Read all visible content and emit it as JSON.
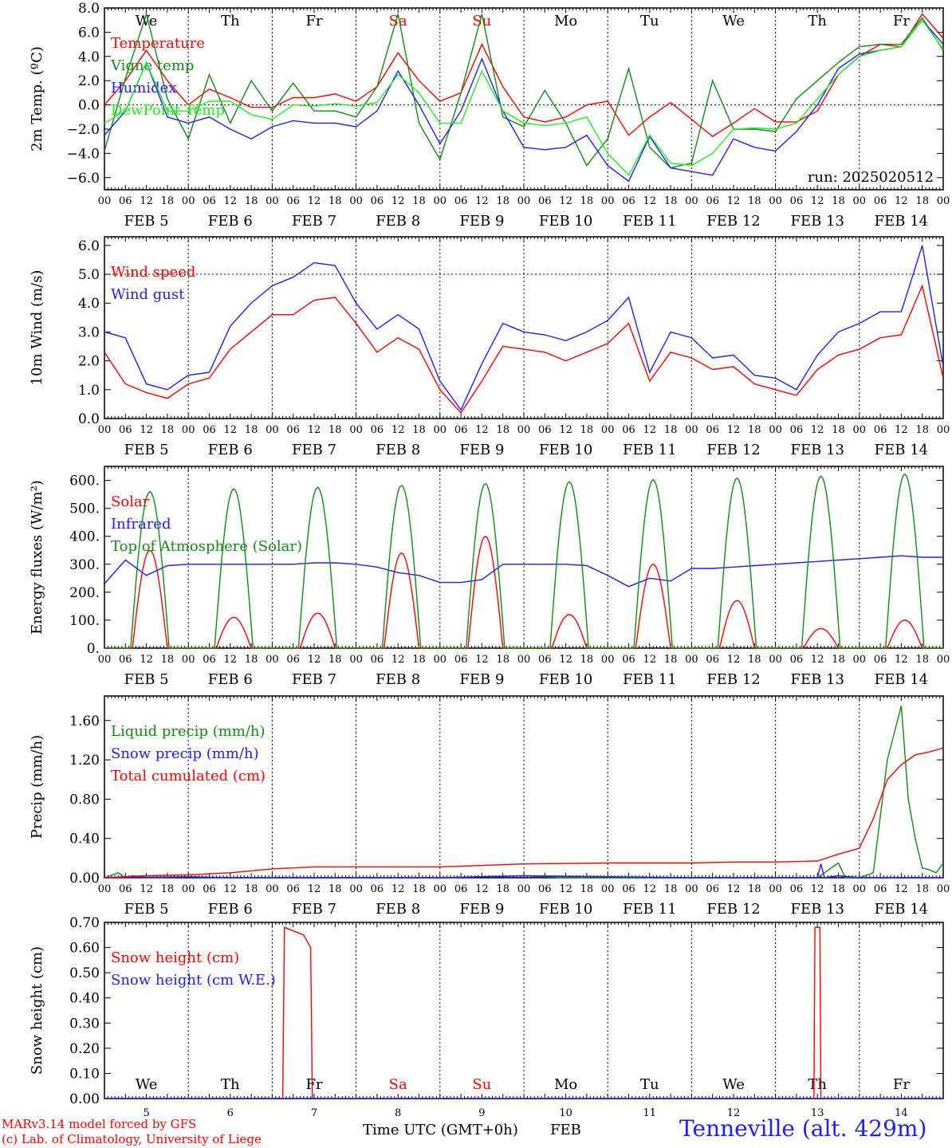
{
  "colors": {
    "red": "#ff0000",
    "dark_green": "#138a13",
    "blue": "#1e1eff",
    "light_green": "#22ee22",
    "weekend_day": "#ff0000",
    "axis": "#000000"
  },
  "footer": {
    "credit_line1": "MARv3.14 model forced by GFS",
    "credit_line2": "(c) Lab. of Climatology, University of Liege",
    "x_title": "Time UTC (GMT+0h)",
    "x_month": "FEB",
    "station": "Tenneville (alt. 429m)"
  },
  "chart_data": [
    {
      "type": "line",
      "panel": "temperature",
      "ylabel": "2m Temp. (ºC)",
      "ylim": [
        -7,
        8
      ],
      "yticks": [
        "8.0",
        "6.0",
        "4.0",
        "2.0",
        "0.0",
        "−2.0",
        "−4.0",
        "−6.0"
      ],
      "reference_line": 0.0,
      "annotation": "run: 2025020512",
      "day_names": [
        {
          "label": "We",
          "weekend": false
        },
        {
          "label": "Th",
          "weekend": false
        },
        {
          "label": "Fr",
          "weekend": false
        },
        {
          "label": "Sa",
          "weekend": true
        },
        {
          "label": "Su",
          "weekend": true
        },
        {
          "label": "Mo",
          "weekend": false
        },
        {
          "label": "Tu",
          "weekend": false
        },
        {
          "label": "We",
          "weekend": false
        },
        {
          "label": "Th",
          "weekend": false
        },
        {
          "label": "Fr",
          "weekend": false
        }
      ],
      "x_hours_points": [
        0,
        6,
        12,
        18,
        24,
        30,
        36,
        42,
        48,
        54,
        60,
        66,
        72,
        78,
        84,
        90,
        96,
        102,
        108,
        114,
        120,
        126,
        132,
        138,
        144,
        150,
        156,
        162,
        168,
        174,
        180,
        186,
        192,
        198,
        204,
        210,
        216,
        222,
        228,
        234,
        240
      ],
      "series": [
        {
          "name": "Temperature",
          "color": "red",
          "values": [
            0.0,
            2.0,
            4.5,
            2.0,
            0.0,
            1.3,
            0.6,
            -0.2,
            -0.2,
            0.6,
            0.6,
            0.9,
            0.3,
            1.5,
            4.3,
            2.0,
            0.3,
            1.0,
            5.0,
            1.5,
            -1.0,
            -1.4,
            -1.0,
            0.0,
            0.3,
            -2.5,
            -1.0,
            0.2,
            -1.2,
            -2.6,
            -1.5,
            -0.3,
            -1.4,
            -1.4,
            -0.5,
            2.5,
            4.0,
            5.0,
            4.8,
            7.5,
            5.5
          ]
        },
        {
          "name": "Vigne temp",
          "color": "dark_green",
          "values": [
            -3.8,
            2.2,
            7.5,
            0.5,
            -2.8,
            2.5,
            -1.5,
            2.0,
            -0.5,
            1.8,
            -0.5,
            -0.5,
            -1.0,
            1.5,
            7.5,
            -1.5,
            -4.5,
            1.0,
            7.5,
            -1.0,
            -1.8,
            1.2,
            -1.5,
            -5.0,
            -2.8,
            3.0,
            -3.5,
            -5.2,
            -4.8,
            2.0,
            -2.0,
            -2.0,
            -2.2,
            0.5,
            2.0,
            3.5,
            4.8,
            5.0,
            5.0,
            7.2,
            4.5
          ]
        },
        {
          "name": "Humidex",
          "color": "blue",
          "values": [
            -2.5,
            -0.5,
            3.5,
            -1.0,
            -1.5,
            -1.0,
            -2.0,
            -2.8,
            -1.8,
            -1.3,
            -1.5,
            -1.5,
            -1.8,
            -0.5,
            2.8,
            0.0,
            -3.2,
            -0.5,
            3.8,
            -0.5,
            -3.5,
            -3.7,
            -3.5,
            -2.5,
            -5.0,
            -6.3,
            -2.6,
            -5.2,
            -5.5,
            -5.8,
            -2.8,
            -3.5,
            -3.8,
            -2.2,
            0.0,
            3.0,
            4.2,
            4.5,
            4.8,
            7.0,
            5.0
          ]
        },
        {
          "name": "DewPoint Temp",
          "color": "light_green",
          "values": [
            -1.5,
            -0.5,
            3.5,
            -0.5,
            -0.5,
            0.3,
            0.3,
            -0.8,
            -1.2,
            0.0,
            -0.1,
            0.1,
            -0.1,
            0.2,
            2.5,
            1.0,
            -1.5,
            -1.5,
            2.8,
            -0.5,
            -1.5,
            -1.7,
            -1.5,
            -1.0,
            -4.0,
            -5.8,
            -2.5,
            -4.8,
            -5.0,
            -4.0,
            -2.0,
            -1.9,
            -2.0,
            -1.5,
            0.5,
            2.5,
            4.0,
            4.5,
            4.8,
            7.0,
            4.6
          ]
        }
      ]
    },
    {
      "type": "line",
      "panel": "wind",
      "ylabel": "10m Wind (m/s)",
      "ylim": [
        0,
        6.3
      ],
      "yticks": [
        "6.0",
        "5.0",
        "4.0",
        "3.0",
        "2.0",
        "1.0",
        "0.0"
      ],
      "reference_line": 5.0,
      "x_hours_points": [
        0,
        6,
        12,
        18,
        24,
        30,
        36,
        42,
        48,
        54,
        60,
        66,
        72,
        78,
        84,
        90,
        96,
        102,
        108,
        114,
        120,
        126,
        132,
        138,
        144,
        150,
        156,
        162,
        168,
        174,
        180,
        186,
        192,
        198,
        204,
        210,
        216,
        222,
        228,
        234,
        240
      ],
      "series": [
        {
          "name": "Wind speed",
          "color": "red",
          "values": [
            2.3,
            1.2,
            0.9,
            0.7,
            1.2,
            1.4,
            2.4,
            3.0,
            3.6,
            3.6,
            4.1,
            4.2,
            3.3,
            2.3,
            2.8,
            2.4,
            1.0,
            0.2,
            1.3,
            2.5,
            2.4,
            2.3,
            2.0,
            2.3,
            2.6,
            3.3,
            1.3,
            2.3,
            2.1,
            1.7,
            1.8,
            1.2,
            1.0,
            0.8,
            1.7,
            2.2,
            2.4,
            2.8,
            2.9,
            4.6,
            1.4
          ]
        },
        {
          "name": "Wind gust",
          "color": "blue",
          "values": [
            3.0,
            2.8,
            1.2,
            1.0,
            1.5,
            1.6,
            3.2,
            4.0,
            4.6,
            4.9,
            5.4,
            5.3,
            4.0,
            3.1,
            3.6,
            3.1,
            1.3,
            0.3,
            1.9,
            3.3,
            3.0,
            2.9,
            2.7,
            3.0,
            3.4,
            4.2,
            1.6,
            3.0,
            2.8,
            2.1,
            2.2,
            1.5,
            1.4,
            1.0,
            2.2,
            3.0,
            3.3,
            3.7,
            3.7,
            6.0,
            1.8
          ]
        }
      ]
    },
    {
      "type": "line",
      "panel": "energy",
      "ylabel": "Energy fluxes (W/m²)",
      "ylim": [
        0,
        650
      ],
      "yticks": [
        "600.",
        "500.",
        "400.",
        "300.",
        "200.",
        "100.",
        "0."
      ],
      "peak_hour": 13,
      "series": [
        {
          "name": "Solar",
          "color": "red",
          "peaks": [
            350,
            110,
            125,
            340,
            400,
            120,
            300,
            170,
            70,
            100
          ],
          "half_width_h": 5
        },
        {
          "name": "Infrared",
          "color": "blue",
          "x_hours": [
            0,
            6,
            12,
            18,
            24,
            30,
            36,
            42,
            48,
            54,
            60,
            66,
            72,
            78,
            84,
            90,
            96,
            102,
            108,
            114,
            120,
            126,
            132,
            138,
            144,
            150,
            156,
            162,
            168,
            174,
            180,
            186,
            192,
            198,
            204,
            210,
            216,
            222,
            228,
            234,
            240
          ],
          "values": [
            230,
            315,
            260,
            295,
            300,
            300,
            300,
            300,
            300,
            300,
            305,
            305,
            300,
            290,
            270,
            260,
            235,
            235,
            245,
            300,
            300,
            300,
            300,
            295,
            260,
            220,
            250,
            240,
            285,
            285,
            290,
            295,
            300,
            305,
            310,
            315,
            320,
            325,
            330,
            325,
            325
          ]
        },
        {
          "name": "Top of Atmosphere (Solar)",
          "color": "dark_green",
          "peaks": [
            560,
            570,
            575,
            582,
            588,
            595,
            602,
            608,
            615,
            622
          ],
          "half_width_h": 5.5
        }
      ]
    },
    {
      "type": "line",
      "panel": "precip",
      "ylabel": "Precip (mm/h)",
      "ylim": [
        0,
        1.85
      ],
      "yticks": [
        "1.60",
        "1.20",
        "0.80",
        "0.40",
        "0.00"
      ],
      "series": [
        {
          "name": "Liquid precip (mm/h)",
          "color": "dark_green",
          "x_hours": [
            0,
            4,
            6,
            8,
            12,
            24,
            36,
            60,
            96,
            120,
            132,
            168,
            204,
            210,
            212,
            216,
            220,
            224,
            228,
            230,
            232,
            234,
            236,
            238,
            240
          ],
          "values": [
            0,
            0.05,
            0,
            0.02,
            0,
            0.01,
            0,
            0,
            0,
            0.02,
            0,
            0,
            0,
            0.15,
            0,
            0,
            0.05,
            1.2,
            1.75,
            0.8,
            0.4,
            0.1,
            0.08,
            0.05,
            0.15
          ]
        },
        {
          "name": "Snow precip (mm/h)",
          "color": "blue",
          "x_hours": [
            0,
            24,
            36,
            48,
            72,
            96,
            120,
            168,
            204,
            205,
            206,
            210,
            216,
            240
          ],
          "values": [
            0,
            0.01,
            0,
            0,
            0,
            0,
            0.02,
            0,
            0,
            0.14,
            0,
            0.02,
            0,
            0
          ]
        },
        {
          "name": "Total cumulated (cm)",
          "color": "red",
          "x_hours": [
            0,
            12,
            24,
            36,
            48,
            60,
            72,
            96,
            120,
            144,
            168,
            180,
            192,
            204,
            210,
            216,
            220,
            224,
            228,
            232,
            236,
            240
          ],
          "values": [
            0,
            0.02,
            0.03,
            0.05,
            0.09,
            0.11,
            0.11,
            0.11,
            0.14,
            0.15,
            0.15,
            0.16,
            0.16,
            0.17,
            0.24,
            0.3,
            0.6,
            1.0,
            1.15,
            1.25,
            1.28,
            1.32
          ]
        }
      ]
    },
    {
      "type": "line",
      "panel": "snow",
      "ylabel": "Snow height (cm)",
      "ylim": [
        0,
        0.7
      ],
      "yticks": [
        "0.70",
        "0.60",
        "0.50",
        "0.40",
        "0.30",
        "0.20",
        "0.10",
        "0.00"
      ],
      "day_names": [
        {
          "label": "We",
          "weekend": false
        },
        {
          "label": "Th",
          "weekend": false
        },
        {
          "label": "Fr",
          "weekend": false
        },
        {
          "label": "Sa",
          "weekend": true
        },
        {
          "label": "Su",
          "weekend": true
        },
        {
          "label": "Mo",
          "weekend": false
        },
        {
          "label": "Tu",
          "weekend": false
        },
        {
          "label": "We",
          "weekend": false
        },
        {
          "label": "Th",
          "weekend": false
        },
        {
          "label": "Fr",
          "weekend": false
        }
      ],
      "day_numbers": [
        "5",
        "6",
        "7",
        "8",
        "9",
        "10",
        "11",
        "12",
        "13",
        "14"
      ],
      "series": [
        {
          "name": "Snow height (cm)",
          "color": "red",
          "x_hours": [
            0,
            51,
            51.5,
            57,
            59,
            59.5,
            240
          ],
          "values": [
            0,
            0,
            0.68,
            0.65,
            0.6,
            0,
            0
          ],
          "spikes": [
            {
              "start": 203,
              "end": 205,
              "value": 0.68
            }
          ]
        },
        {
          "name": "Snow height (cm W.E.)",
          "color": "blue",
          "x_hours": [
            0,
            240
          ],
          "values": [
            0,
            0
          ]
        }
      ]
    }
  ],
  "shared_axis": {
    "x_hours_range": [
      0,
      240
    ],
    "hour_ticks": [
      "00",
      "06",
      "12",
      "18"
    ],
    "final_tick": "00",
    "date_labels": [
      "FEB  5",
      "FEB  6",
      "FEB  7",
      "FEB  8",
      "FEB  9",
      "FEB 10",
      "FEB 11",
      "FEB 12",
      "FEB 13",
      "FEB 14"
    ]
  }
}
